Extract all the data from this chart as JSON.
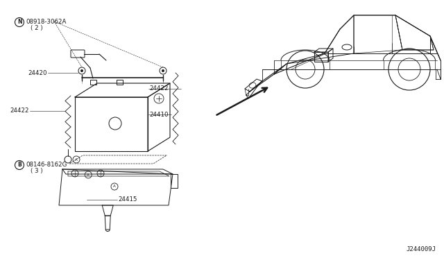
{
  "bg_color": "#ffffff",
  "line_color": "#1a1a1a",
  "fig_width": 6.4,
  "fig_height": 3.72,
  "diagram_code": "J244009J",
  "labels": {
    "bolt_top_code": "08918-3062A",
    "bolt_top_qty": "( 2 )",
    "bolt_bot_code": "08146-8162G",
    "bolt_bot_qty": "( 3 )",
    "p24420": "24420",
    "p24422a": "24422",
    "p24422b": "24422",
    "p24410": "24410",
    "p24415": "24415"
  }
}
